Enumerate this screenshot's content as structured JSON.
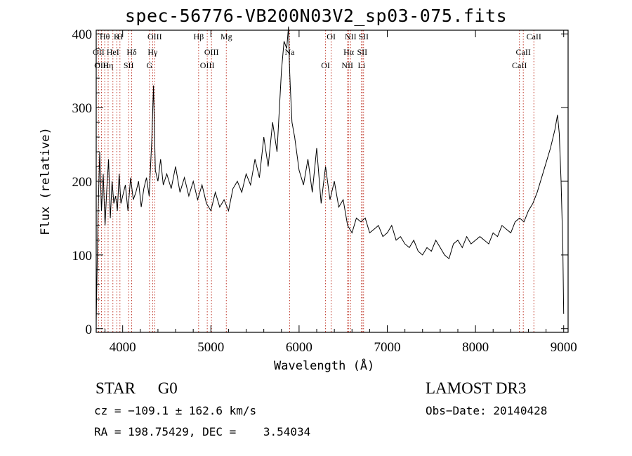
{
  "chart_data": {
    "type": "line",
    "title": "spec-56776-VB200N03V2_sp03-075.fits",
    "xlabel": "Wavelength (Å)",
    "ylabel": "Flux (relative)",
    "xlim": [
      3700,
      9050
    ],
    "ylim": [
      -5,
      405
    ],
    "xticks": [
      4000,
      5000,
      6000,
      7000,
      8000,
      9000
    ],
    "yticks": [
      0,
      100,
      200,
      300,
      400
    ],
    "series": [
      {
        "name": "flux",
        "x": [
          3700,
          3720,
          3740,
          3760,
          3780,
          3800,
          3820,
          3840,
          3860,
          3880,
          3900,
          3920,
          3940,
          3960,
          3980,
          4000,
          4030,
          4060,
          4090,
          4120,
          4150,
          4180,
          4210,
          4240,
          4270,
          4300,
          4330,
          4350,
          4370,
          4400,
          4430,
          4460,
          4500,
          4550,
          4600,
          4650,
          4700,
          4750,
          4800,
          4850,
          4900,
          4950,
          5000,
          5050,
          5100,
          5150,
          5200,
          5250,
          5300,
          5350,
          5400,
          5450,
          5500,
          5550,
          5600,
          5650,
          5700,
          5750,
          5800,
          5830,
          5860,
          5880,
          5890,
          5900,
          5920,
          5950,
          6000,
          6050,
          6100,
          6150,
          6200,
          6250,
          6300,
          6350,
          6400,
          6450,
          6500,
          6550,
          6600,
          6650,
          6700,
          6750,
          6800,
          6850,
          6900,
          6950,
          7000,
          7050,
          7100,
          7150,
          7200,
          7250,
          7300,
          7350,
          7400,
          7450,
          7500,
          7550,
          7600,
          7650,
          7700,
          7750,
          7800,
          7850,
          7900,
          7950,
          8000,
          8050,
          8100,
          8150,
          8200,
          8250,
          8300,
          8350,
          8400,
          8450,
          8500,
          8550,
          8600,
          8650,
          8700,
          8750,
          8800,
          8850,
          8900,
          8930,
          8950,
          8970,
          8990,
          9000
        ],
        "values": [
          10,
          150,
          240,
          160,
          210,
          140,
          190,
          230,
          150,
          200,
          170,
          180,
          160,
          210,
          170,
          180,
          195,
          160,
          205,
          175,
          185,
          200,
          165,
          190,
          205,
          180,
          255,
          330,
          215,
          200,
          230,
          195,
          210,
          190,
          220,
          185,
          205,
          180,
          200,
          175,
          195,
          170,
          160,
          185,
          165,
          175,
          160,
          190,
          200,
          185,
          210,
          195,
          230,
          205,
          260,
          220,
          280,
          240,
          350,
          390,
          380,
          410,
          360,
          330,
          280,
          260,
          215,
          195,
          230,
          185,
          245,
          170,
          220,
          175,
          200,
          165,
          175,
          140,
          130,
          150,
          145,
          150,
          130,
          135,
          140,
          125,
          130,
          140,
          120,
          125,
          115,
          110,
          120,
          105,
          100,
          110,
          105,
          120,
          110,
          100,
          95,
          115,
          120,
          110,
          125,
          115,
          120,
          125,
          120,
          115,
          130,
          125,
          140,
          135,
          130,
          145,
          150,
          145,
          160,
          170,
          185,
          205,
          225,
          245,
          270,
          290,
          265,
          200,
          110,
          20
        ]
      }
    ],
    "line_markers": [
      {
        "label": "Hθ",
        "x": 3797
      },
      {
        "label": "OII",
        "x": 3727
      },
      {
        "label": "OIII",
        "x": 3760
      },
      {
        "label": "K",
        "x": 3934
      },
      {
        "label": "HeI",
        "x": 3889
      },
      {
        "label": "Hη",
        "x": 3835
      },
      {
        "label": "H",
        "x": 3969
      },
      {
        "label": "Hδ",
        "x": 4102
      },
      {
        "label": "SII",
        "x": 4068
      },
      {
        "label": "OIII",
        "x": 4363
      },
      {
        "label": "Hγ",
        "x": 4340
      },
      {
        "label": "G",
        "x": 4304
      },
      {
        "label": "Hβ",
        "x": 4861
      },
      {
        "label": "OIII",
        "x": 5007
      },
      {
        "label": "OIII",
        "x": 4959
      },
      {
        "label": "Mg",
        "x": 5175
      },
      {
        "label": "Na",
        "x": 5893
      },
      {
        "label": "OI",
        "x": 6300
      },
      {
        "label": "OI",
        "x": 6364
      },
      {
        "label": "Hα",
        "x": 6563
      },
      {
        "label": "NII",
        "x": 6548
      },
      {
        "label": "NII",
        "x": 6584
      },
      {
        "label": "SII",
        "x": 6716
      },
      {
        "label": "Li",
        "x": 6708
      },
      {
        "label": "SII",
        "x": 6731
      },
      {
        "label": "CaII",
        "x": 8542
      },
      {
        "label": "CaII",
        "x": 8498
      },
      {
        "label": "CaII",
        "x": 8662
      }
    ]
  },
  "info": {
    "star_class": "STAR    G0",
    "survey": "LAMOST DR3",
    "cz": "cz = −109.1 ± 162.6 km/s",
    "obs_date": "Obs−Date: 20140428",
    "radec": "RA = 198.75429, DEC =    3.54034"
  }
}
